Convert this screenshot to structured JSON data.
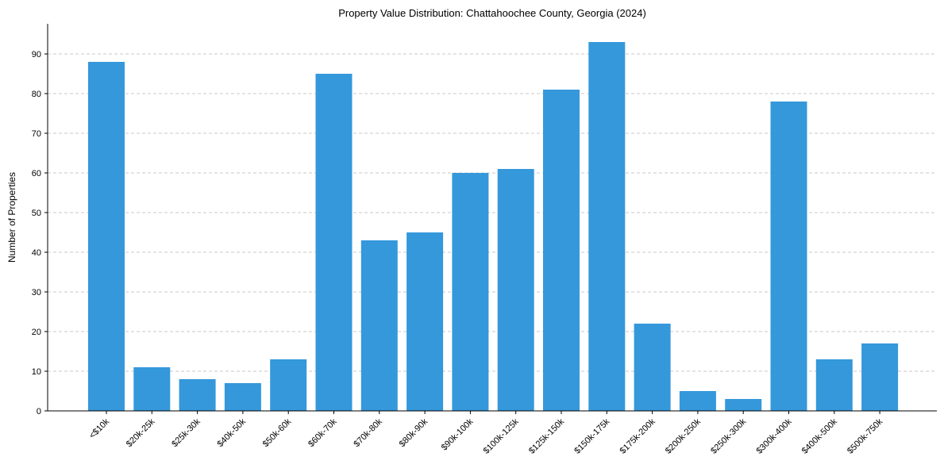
{
  "chart_data": {
    "type": "bar",
    "title": "Property Value Distribution: Chattahoochee County, Georgia (2024)",
    "xlabel": "",
    "ylabel": "Number of Properties",
    "ylim": [
      0,
      98
    ],
    "yticks": [
      0,
      10,
      20,
      30,
      40,
      50,
      60,
      70,
      80,
      90
    ],
    "grid": "y-dashed",
    "bar_color": "#3498db",
    "categories": [
      "<$10k",
      "$20k-25k",
      "$25k-30k",
      "$40k-50k",
      "$50k-60k",
      "$60k-70k",
      "$70k-80k",
      "$80k-90k",
      "$90k-100k",
      "$100k-125k",
      "$125k-150k",
      "$150k-175k",
      "$175k-200k",
      "$200k-250k",
      "$250k-300k",
      "$300k-400k",
      "$400k-500k",
      "$500k-750k"
    ],
    "values": [
      88,
      11,
      8,
      7,
      13,
      85,
      43,
      45,
      60,
      61,
      81,
      93,
      22,
      5,
      3,
      78,
      13,
      17
    ]
  }
}
